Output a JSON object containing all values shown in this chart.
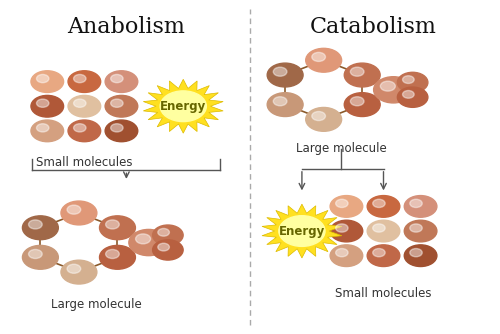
{
  "title_anabolism": "Anabolism",
  "title_catabolism": "Catabolism",
  "label_small_molecules_top": "Small molecules",
  "label_large_molecule_top": "Large molecule",
  "label_large_molecule_bottom": "Large molecule",
  "label_small_molecules_bottom": "Small molecules",
  "label_energy": "Energy",
  "bg_color": "#ffffff",
  "ball_colors_grid": [
    "#e8a882",
    "#c86840",
    "#d4907a",
    "#b05838",
    "#e0c0a0",
    "#c07858",
    "#d4a080",
    "#c06848",
    "#a05030"
  ],
  "ball_colors_mol": [
    "#e09878",
    "#c07050",
    "#b86040",
    "#d4b090",
    "#c89878",
    "#a06848",
    "#d0886a",
    "#b07858"
  ],
  "bond_color": "#8B5A2B",
  "arrow_color": "#555555",
  "energy_color_outer": "#FFE020",
  "energy_color_inner": "#FFFFA0",
  "divider_color": "#aaaaaa",
  "title_fontsize": 16,
  "label_fontsize": 8.5,
  "energy_fontsize": 8.5,
  "fig_w": 5.0,
  "fig_h": 3.34,
  "dpi": 100
}
